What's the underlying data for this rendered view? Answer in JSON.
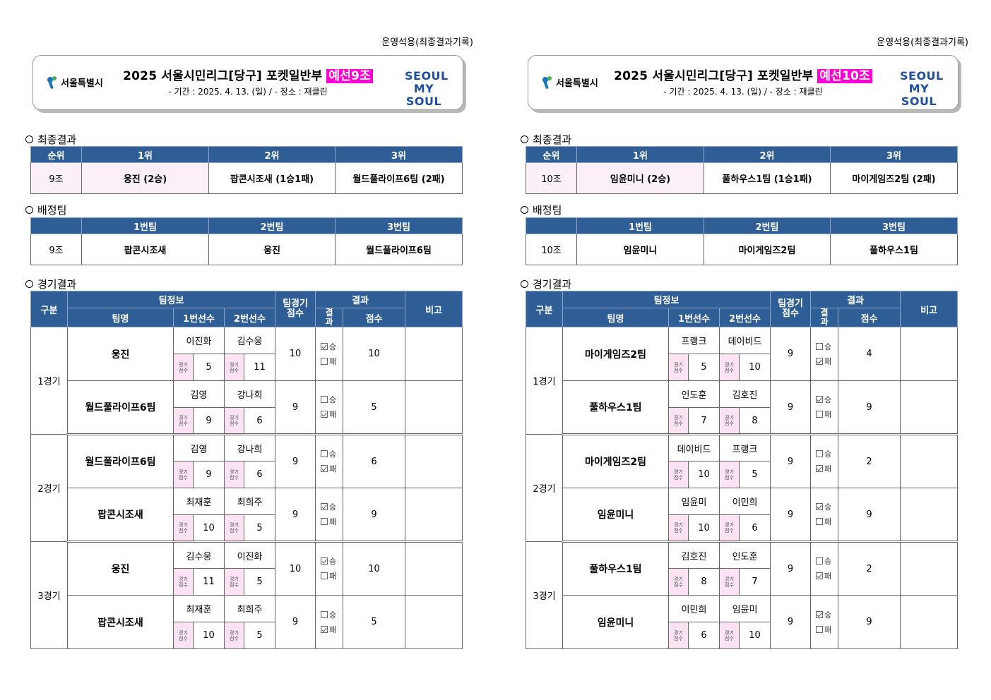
{
  "panels": [
    {
      "top_note": "운영석용(최종결과기록)",
      "seoul_logo": "서울특별시",
      "title": "2025  서울시민리그[당구]  포켓일반부",
      "group_tag": "예선9조",
      "subtitle": "- 기간 : 2025. 4. 13. (일) / - 장소 : 재클린",
      "mysoul": {
        "line1": "SEOUL",
        "line2": "MY SOUL"
      },
      "final_results": {
        "section_title": "최종결과",
        "headers": [
          "순위",
          "1위",
          "2위",
          "3위"
        ],
        "row": [
          "9조",
          "웅진 (2승)",
          "팝콘시조새 (1승1패)",
          "월드풀라이프6팀 (2패)"
        ]
      },
      "assigned_teams": {
        "section_title": "배정팀",
        "headers": [
          "",
          "1번팀",
          "2번팀",
          "3번팀"
        ],
        "row": [
          "9조",
          "팝콘시조새",
          "웅진",
          "월드풀라이프6팀"
        ]
      },
      "matches": {
        "section_title": "경기결과",
        "headers": {
          "category": "구분",
          "team_info": "팀정보",
          "team_name": "팀명",
          "p1": "1번선수",
          "p2": "2번선수",
          "team_score": "팀경기\n점수",
          "result": "결과",
          "result_short": "결\n과",
          "score": "점수",
          "note": "비고"
        },
        "score_label": "경기\n점수",
        "win_label": "승",
        "loss_label": "패",
        "games": [
          {
            "label": "1경기",
            "teams": [
              {
                "name": "웅진",
                "p1": "이진화",
                "p2": "김수웅",
                "s1": "5",
                "s2": "11",
                "team_score": "10",
                "win": true,
                "score": "10"
              },
              {
                "name": "월드풀라이프6팀",
                "p1": "김영",
                "p2": "강나희",
                "s1": "9",
                "s2": "6",
                "team_score": "9",
                "win": false,
                "score": "5"
              }
            ]
          },
          {
            "label": "2경기",
            "teams": [
              {
                "name": "월드풀라이프6팀",
                "p1": "김영",
                "p2": "강나희",
                "s1": "9",
                "s2": "6",
                "team_score": "9",
                "win": false,
                "score": "6"
              },
              {
                "name": "팝콘시조새",
                "p1": "최재훈",
                "p2": "최희주",
                "s1": "10",
                "s2": "5",
                "team_score": "9",
                "win": true,
                "score": "9"
              }
            ]
          },
          {
            "label": "3경기",
            "teams": [
              {
                "name": "웅진",
                "p1": "김수웅",
                "p2": "이진화",
                "s1": "11",
                "s2": "5",
                "team_score": "10",
                "win": true,
                "score": "10"
              },
              {
                "name": "팝콘시조새",
                "p1": "최재훈",
                "p2": "최희주",
                "s1": "10",
                "s2": "5",
                "team_score": "9",
                "win": false,
                "score": "5"
              }
            ]
          }
        ]
      }
    },
    {
      "top_note": "운영석용(최종결과기록)",
      "seoul_logo": "서울특별시",
      "title": "2025  서울시민리그[당구]  포켓일반부",
      "group_tag": "예선10조",
      "subtitle": "- 기간 : 2025. 4. 13. (일) / - 장소 : 재클린",
      "mysoul": {
        "line1": "SEOUL",
        "line2": "MY SOUL"
      },
      "final_results": {
        "section_title": "최종결과",
        "headers": [
          "순위",
          "1위",
          "2위",
          "3위"
        ],
        "row": [
          "10조",
          "임윤미니 (2승)",
          "풀하우스1팀 (1승1패)",
          "마이게임즈2팀 (2패)"
        ]
      },
      "assigned_teams": {
        "section_title": "배정팀",
        "headers": [
          "",
          "1번팀",
          "2번팀",
          "3번팀"
        ],
        "row": [
          "10조",
          "임윤미니",
          "마이게임즈2팀",
          "풀하우스1팀"
        ]
      },
      "matches": {
        "section_title": "경기결과",
        "headers": {
          "category": "구분",
          "team_info": "팀정보",
          "team_name": "팀명",
          "p1": "1번선수",
          "p2": "2번선수",
          "team_score": "팀경기\n점수",
          "result": "결과",
          "result_short": "결\n과",
          "score": "점수",
          "note": "비고"
        },
        "score_label": "경기\n점수",
        "win_label": "승",
        "loss_label": "패",
        "games": [
          {
            "label": "1경기",
            "teams": [
              {
                "name": "마이게임즈2팀",
                "p1": "프랭크",
                "p2": "데이비드",
                "s1": "5",
                "s2": "10",
                "team_score": "9",
                "win": false,
                "score": "4"
              },
              {
                "name": "풀하우스1팀",
                "p1": "인도훈",
                "p2": "김호진",
                "s1": "7",
                "s2": "8",
                "team_score": "9",
                "win": true,
                "score": "9"
              }
            ]
          },
          {
            "label": "2경기",
            "teams": [
              {
                "name": "마이게임즈2팀",
                "p1": "데이비드",
                "p2": "프랭크",
                "s1": "10",
                "s2": "5",
                "team_score": "9",
                "win": false,
                "score": "2"
              },
              {
                "name": "임윤미니",
                "p1": "임윤미",
                "p2": "이민희",
                "s1": "10",
                "s2": "6",
                "team_score": "9",
                "win": true,
                "score": "9"
              }
            ]
          },
          {
            "label": "3경기",
            "teams": [
              {
                "name": "풀하우스1팀",
                "p1": "김호진",
                "p2": "인도훈",
                "s1": "8",
                "s2": "7",
                "team_score": "9",
                "win": false,
                "score": "2"
              },
              {
                "name": "임윤미니",
                "p1": "이민희",
                "p2": "임윤미",
                "s1": "6",
                "s2": "10",
                "team_score": "9",
                "win": true,
                "score": "9"
              }
            ]
          }
        ]
      }
    }
  ]
}
